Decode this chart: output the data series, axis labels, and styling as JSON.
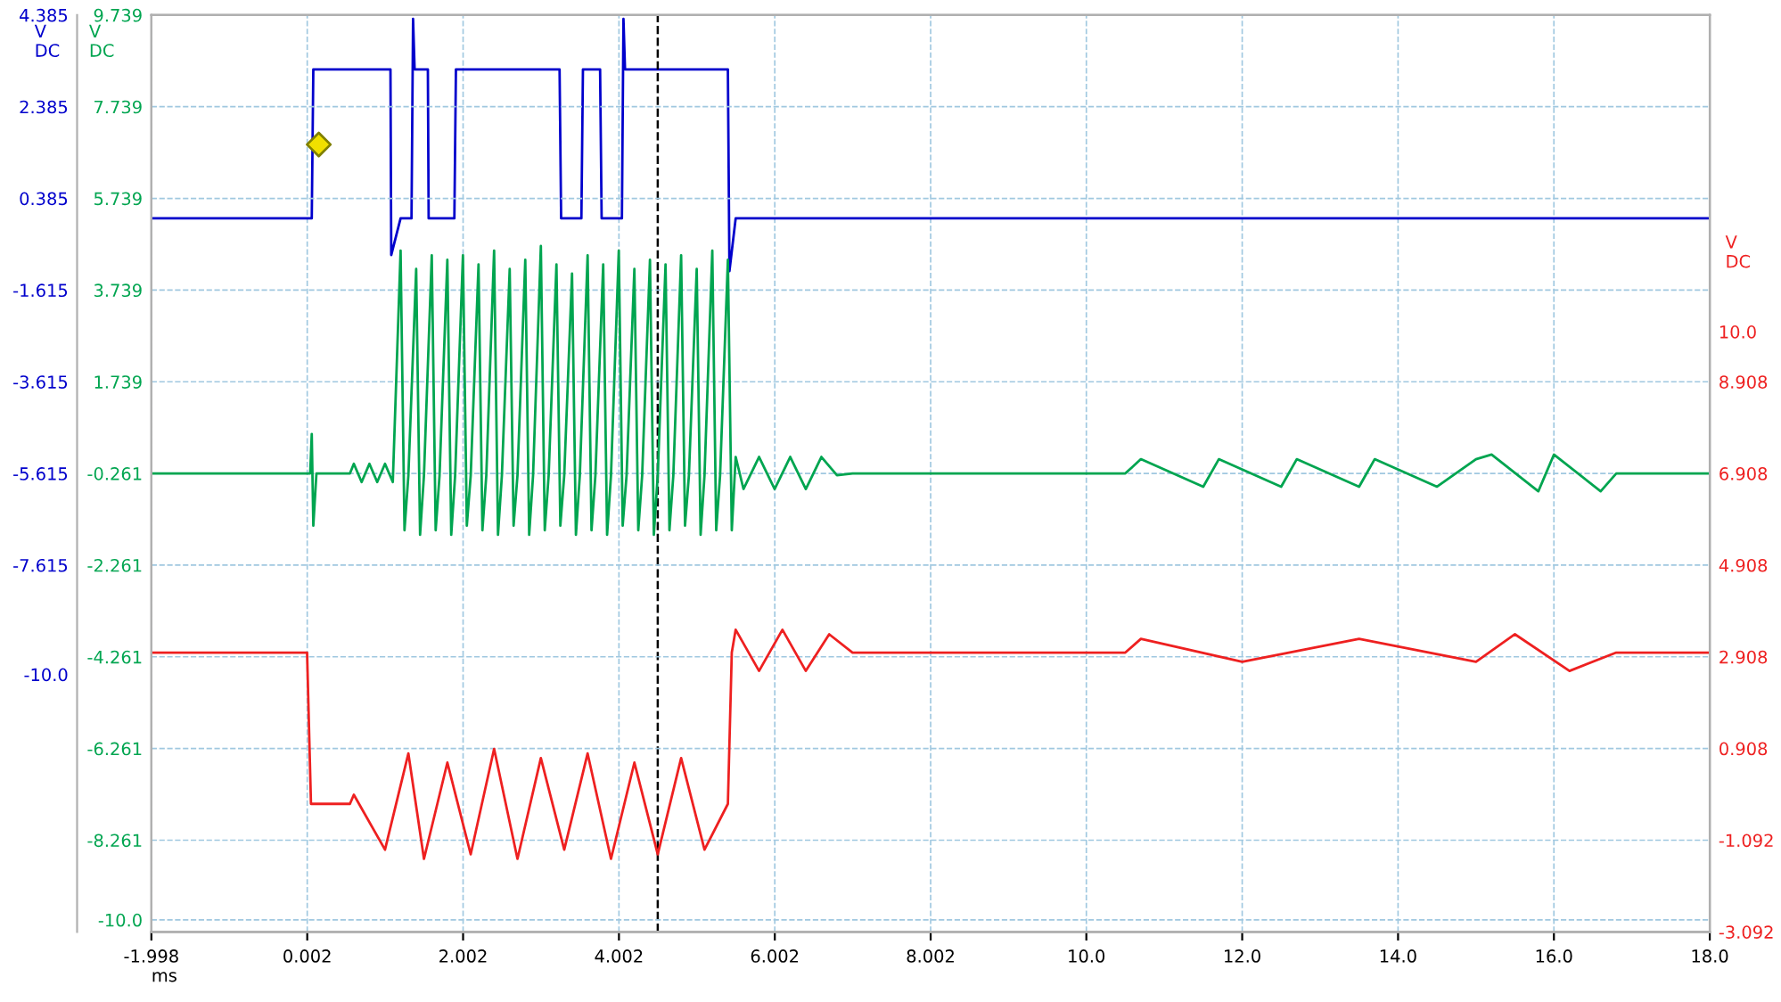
{
  "chart_data": {
    "type": "line",
    "xlabel": "ms",
    "ylabel": "V\nDC",
    "y2label": "V\nDC",
    "y3label": "V\nDC",
    "xlim": [
      -1.998,
      18.0
    ],
    "xticks": [
      -1.998,
      0.002,
      2.002,
      4.002,
      6.002,
      8.002,
      {
        "value": 10,
        "label": "10.0"
      },
      {
        "value": 12,
        "label": "12.0"
      },
      {
        "value": 14,
        "label": "14.0"
      },
      {
        "value": 16,
        "label": "16.0"
      },
      {
        "value": 18,
        "label": "18.0"
      }
    ],
    "ylim": [
      -15.615,
      4.385
    ],
    "yticks": [
      4.385,
      2.385,
      0.385,
      -1.615,
      -3.615,
      -5.615,
      -7.615,
      {
        "value": -10,
        "label": "-10.0"
      }
    ],
    "y2lim": [
      -10.261,
      9.739
    ],
    "y2ticks": [
      9.739,
      7.739,
      5.739,
      3.739,
      1.739,
      -0.261,
      -2.261,
      -4.261,
      -6.261,
      -8.261,
      {
        "value": -10,
        "label": "-10.0"
      }
    ],
    "y3lim": [
      -3.092,
      16.908
    ],
    "y3ticks": [
      {
        "value": 10,
        "label": "10.0"
      },
      8.908,
      6.908,
      4.908,
      2.908,
      0.908,
      -1.092,
      -3.092
    ],
    "grid": true,
    "line_style": "solid",
    "ref_lines": [
      {
        "axis": "x",
        "value": 4.5,
        "color": "#000000",
        "line_style": "dashed"
      }
    ],
    "series": [
      {
        "color": "#0000cc",
        "axis": "y",
        "x": [
          -1.998,
          0.06,
          0.08,
          1.07,
          1.08,
          1.2,
          1.34,
          1.36,
          1.38,
          1.55,
          1.56,
          1.89,
          1.91,
          3.24,
          3.26,
          3.52,
          3.54,
          3.76,
          3.78,
          4.04,
          4.06,
          4.08,
          5.4,
          5.42,
          5.5,
          18.0
        ],
        "values": [
          -0.05,
          -0.05,
          3.2,
          3.2,
          -0.85,
          -0.05,
          -0.05,
          4.3,
          3.2,
          3.2,
          -0.05,
          -0.05,
          3.2,
          3.2,
          -0.05,
          -0.05,
          3.2,
          3.2,
          -0.05,
          -0.05,
          4.3,
          3.2,
          3.2,
          -1.2,
          -0.05,
          -0.05
        ]
      },
      {
        "color": "#00a550",
        "axis": "y2",
        "x": [
          -1.998,
          0.04,
          0.06,
          0.08,
          0.12,
          0.55,
          0.6,
          0.7,
          0.8,
          0.9,
          1.0,
          1.1,
          1.2,
          1.25,
          1.3,
          1.4,
          1.45,
          1.5,
          1.6,
          1.65,
          1.7,
          1.8,
          1.85,
          1.9,
          2.0,
          2.05,
          2.1,
          2.2,
          2.25,
          2.3,
          2.4,
          2.45,
          2.5,
          2.6,
          2.65,
          2.7,
          2.8,
          2.85,
          2.9,
          3.0,
          3.05,
          3.1,
          3.2,
          3.25,
          3.3,
          3.4,
          3.45,
          3.5,
          3.6,
          3.65,
          3.7,
          3.8,
          3.85,
          3.9,
          4.0,
          4.05,
          4.1,
          4.2,
          4.25,
          4.3,
          4.4,
          4.45,
          4.5,
          4.6,
          4.65,
          4.7,
          4.8,
          4.85,
          4.9,
          5.0,
          5.05,
          5.1,
          5.2,
          5.25,
          5.3,
          5.4,
          5.45,
          5.5,
          5.6,
          5.8,
          6.0,
          6.2,
          6.4,
          6.6,
          6.8,
          7.0,
          10.5,
          10.7,
          11.5,
          11.7,
          12.5,
          12.7,
          13.5,
          13.7,
          14.5,
          15.0,
          15.2,
          15.8,
          16.0,
          16.6,
          16.8,
          18.0
        ],
        "values": [
          -0.26,
          -0.26,
          0.6,
          -1.4,
          -0.26,
          -0.26,
          -0.05,
          -0.45,
          -0.05,
          -0.45,
          -0.05,
          -0.45,
          4.6,
          -1.5,
          -0.3,
          4.2,
          -1.6,
          -0.3,
          4.5,
          -1.5,
          -0.3,
          4.4,
          -1.6,
          -0.3,
          4.5,
          -1.4,
          -0.3,
          4.3,
          -1.5,
          -0.3,
          4.6,
          -1.6,
          -0.3,
          4.2,
          -1.4,
          -0.3,
          4.4,
          -1.6,
          -0.3,
          4.7,
          -1.5,
          -0.3,
          4.3,
          -1.4,
          -0.3,
          4.1,
          -1.6,
          -0.3,
          4.5,
          -1.5,
          -0.3,
          4.3,
          -1.6,
          -0.3,
          4.6,
          -1.4,
          -0.3,
          4.2,
          -1.5,
          -0.3,
          4.4,
          -1.6,
          -0.3,
          4.3,
          -1.5,
          -0.3,
          4.5,
          -1.4,
          -0.3,
          4.2,
          -1.6,
          -0.3,
          4.6,
          -1.5,
          -0.3,
          4.4,
          -1.5,
          0.1,
          -0.6,
          0.1,
          -0.6,
          0.1,
          -0.6,
          0.1,
          -0.3,
          -0.26,
          -0.26,
          0.05,
          -0.55,
          0.05,
          -0.55,
          0.05,
          -0.55,
          0.05,
          -0.55,
          0.05,
          0.15,
          -0.65,
          0.15,
          -0.65,
          -0.26,
          -0.26
        ]
      },
      {
        "color": "#ee2020",
        "axis": "y3",
        "x": [
          -1.998,
          0.0,
          0.05,
          0.55,
          0.6,
          1.0,
          1.3,
          1.5,
          1.8,
          2.1,
          2.4,
          2.7,
          3.0,
          3.3,
          3.6,
          3.9,
          4.2,
          4.5,
          4.8,
          5.1,
          5.4,
          5.45,
          5.5,
          5.8,
          6.1,
          6.4,
          6.7,
          7.0,
          10.5,
          10.7,
          12.0,
          13.5,
          15.0,
          15.5,
          16.2,
          16.8,
          18.0
        ],
        "values": [
          3.0,
          3.0,
          -0.3,
          -0.3,
          -0.1,
          -1.3,
          0.8,
          -1.5,
          0.6,
          -1.4,
          0.9,
          -1.5,
          0.7,
          -1.3,
          0.8,
          -1.5,
          0.6,
          -1.4,
          0.7,
          -1.3,
          -0.3,
          3.0,
          3.5,
          2.6,
          3.5,
          2.6,
          3.4,
          3.0,
          3.0,
          3.3,
          2.8,
          3.3,
          2.8,
          3.4,
          2.6,
          3.0,
          3.0
        ]
      },
      {
        "type": "scatter",
        "color": "#f0e000",
        "axis": "y",
        "marker": "diamond",
        "x": [
          0.15
        ],
        "values": [
          1.56
        ]
      }
    ]
  }
}
